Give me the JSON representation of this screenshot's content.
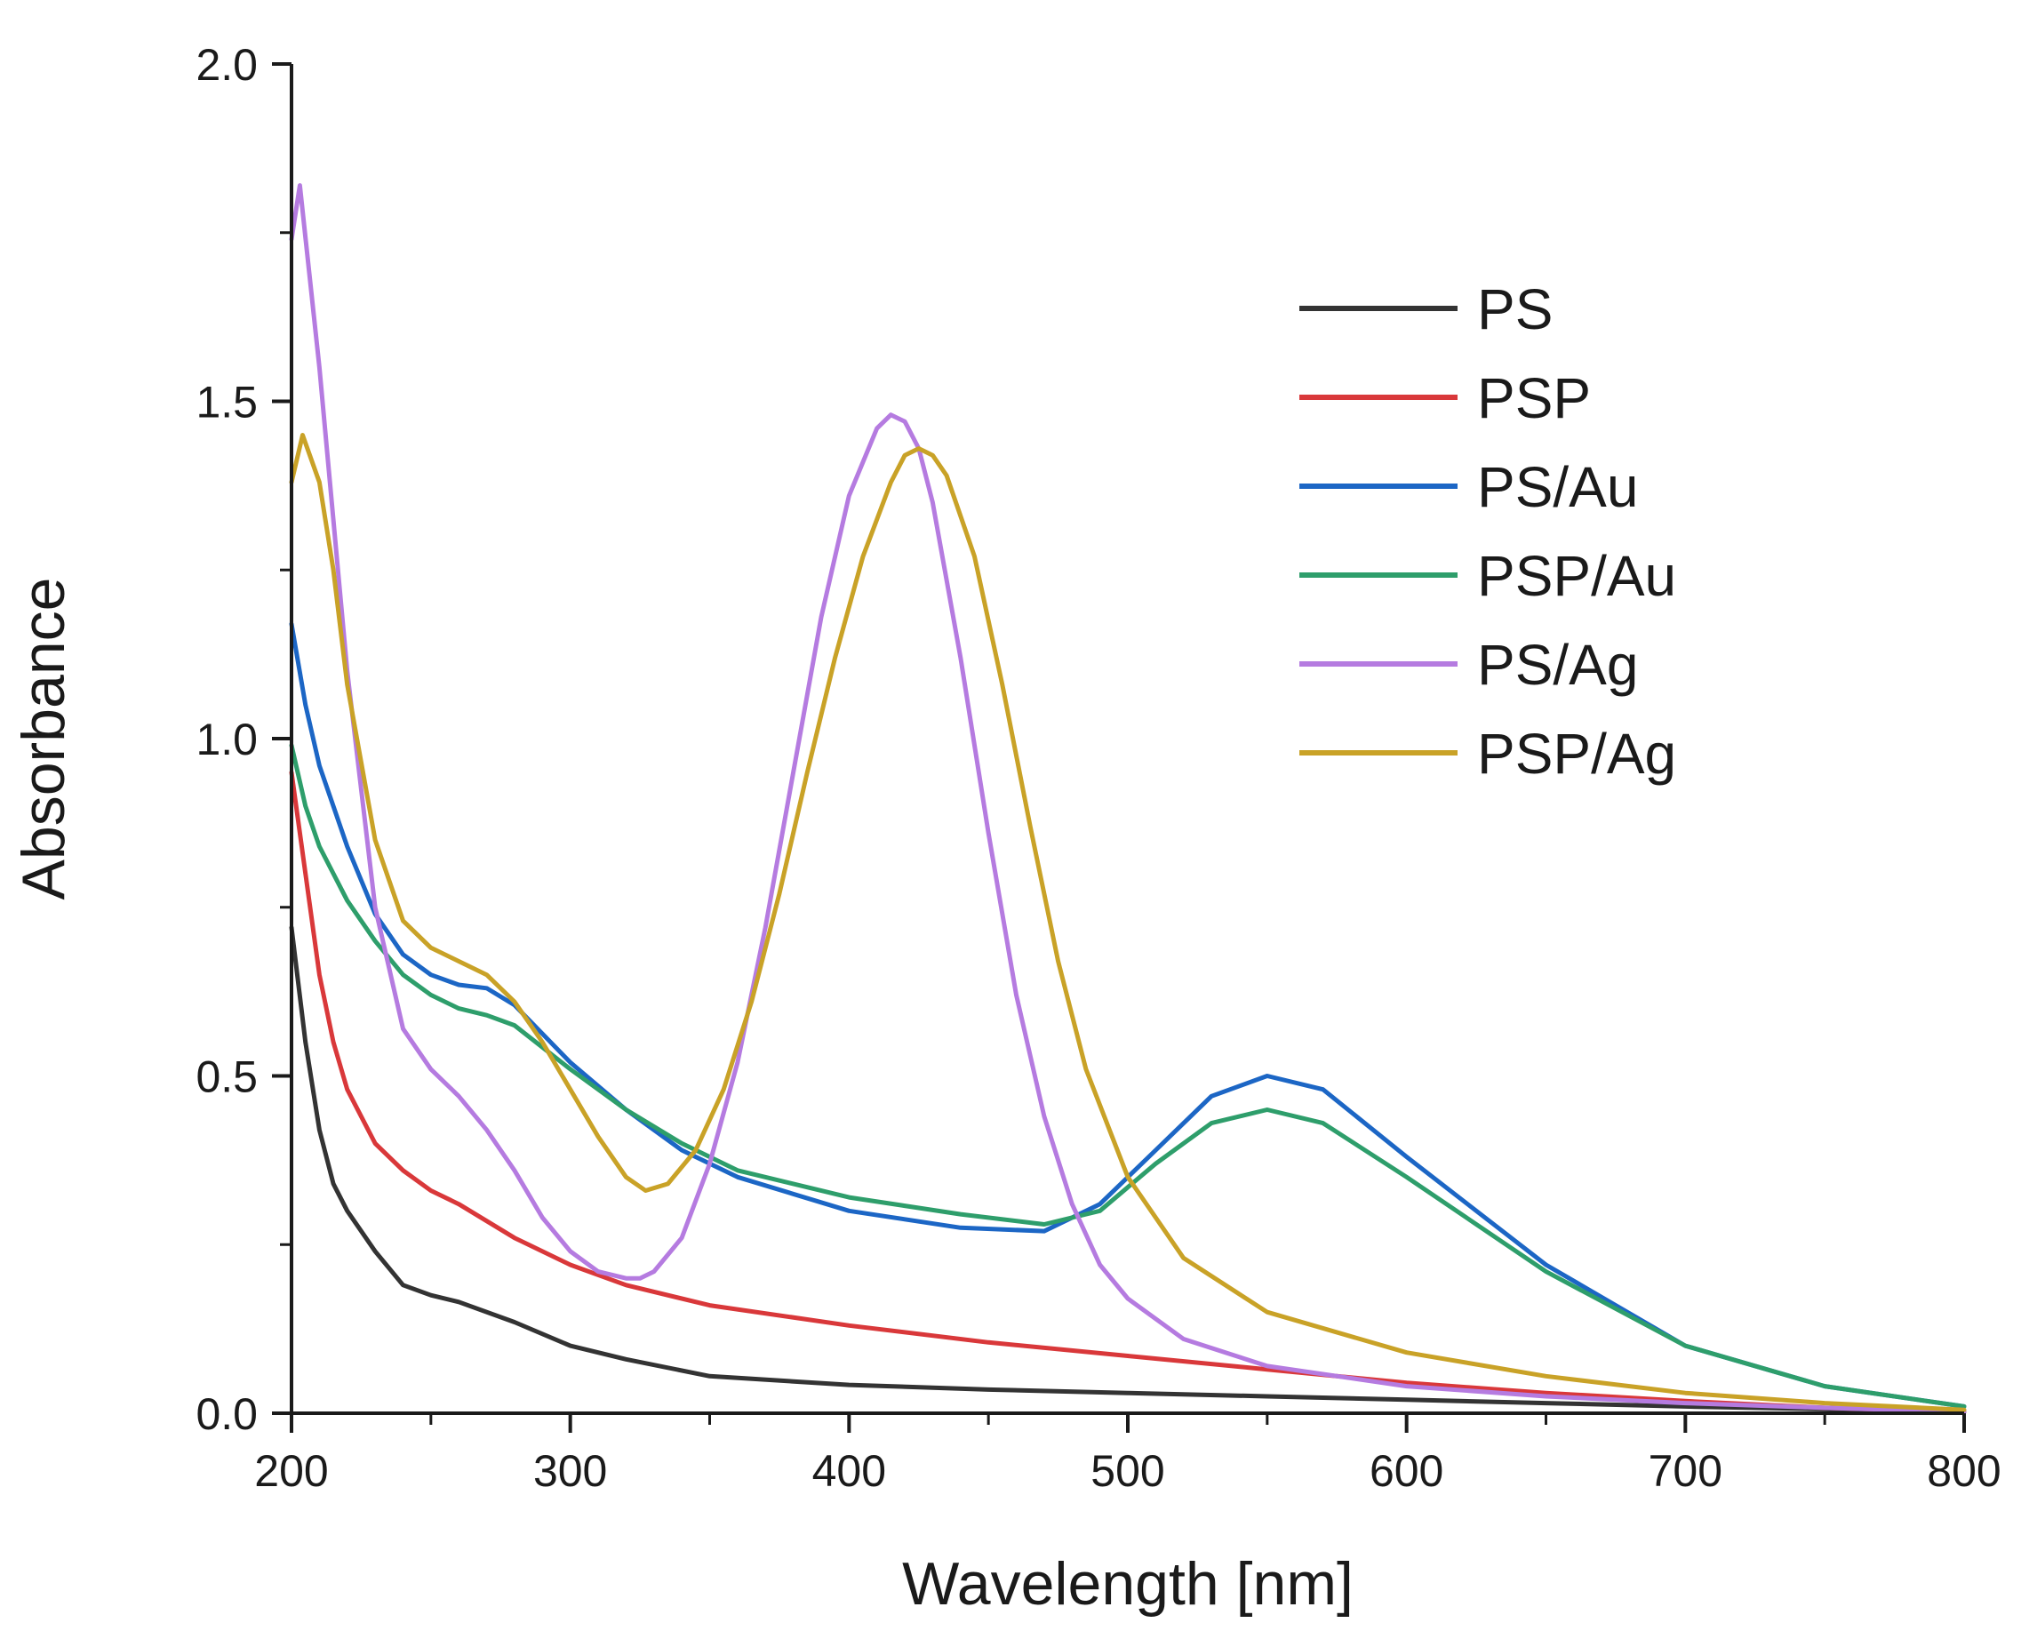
{
  "chart_data": {
    "type": "line",
    "title": "",
    "xlabel": "Wavelength [nm]",
    "ylabel": "Absorbance",
    "xlim": [
      200,
      800
    ],
    "ylim": [
      0.0,
      2.0
    ],
    "xticks": [
      200,
      300,
      400,
      500,
      600,
      700,
      800
    ],
    "xtick_labels": [
      "200",
      "300",
      "400",
      "500",
      "600",
      "700",
      "800"
    ],
    "yticks": [
      0.0,
      0.5,
      1.0,
      1.5,
      2.0
    ],
    "ytick_labels": [
      "0.0",
      "0.5",
      "1.0",
      "1.5",
      "2.0"
    ],
    "grid": false,
    "legend_position": "top-right",
    "series": [
      {
        "name": "PS",
        "color": "#333333",
        "x": [
          200,
          205,
          210,
          215,
          220,
          230,
          240,
          250,
          260,
          280,
          300,
          320,
          350,
          400,
          450,
          500,
          550,
          600,
          650,
          700,
          750,
          800
        ],
        "y": [
          0.72,
          0.55,
          0.42,
          0.34,
          0.3,
          0.24,
          0.19,
          0.175,
          0.165,
          0.135,
          0.1,
          0.08,
          0.055,
          0.042,
          0.035,
          0.03,
          0.025,
          0.02,
          0.015,
          0.01,
          0.006,
          0.002
        ]
      },
      {
        "name": "PSP",
        "color": "#d9383a",
        "x": [
          200,
          205,
          210,
          215,
          220,
          230,
          240,
          250,
          260,
          280,
          300,
          320,
          350,
          400,
          450,
          500,
          550,
          600,
          650,
          700,
          750,
          800
        ],
        "y": [
          0.95,
          0.8,
          0.65,
          0.55,
          0.48,
          0.4,
          0.36,
          0.33,
          0.31,
          0.26,
          0.22,
          0.19,
          0.16,
          0.13,
          0.105,
          0.085,
          0.065,
          0.045,
          0.03,
          0.018,
          0.008,
          0.002
        ]
      },
      {
        "name": "PS/Au",
        "color": "#1c66c5",
        "x": [
          200,
          205,
          210,
          220,
          230,
          240,
          250,
          260,
          270,
          280,
          300,
          320,
          340,
          360,
          400,
          440,
          470,
          490,
          510,
          530,
          550,
          570,
          600,
          650,
          700,
          750,
          800
        ],
        "y": [
          1.17,
          1.05,
          0.96,
          0.84,
          0.74,
          0.68,
          0.65,
          0.635,
          0.63,
          0.605,
          0.52,
          0.45,
          0.39,
          0.35,
          0.3,
          0.275,
          0.27,
          0.31,
          0.39,
          0.47,
          0.5,
          0.48,
          0.38,
          0.22,
          0.1,
          0.04,
          0.01
        ]
      },
      {
        "name": "PSP/Au",
        "color": "#2e9e6b",
        "x": [
          200,
          205,
          210,
          220,
          230,
          240,
          250,
          260,
          270,
          280,
          300,
          320,
          340,
          360,
          400,
          440,
          470,
          490,
          510,
          530,
          550,
          570,
          600,
          650,
          700,
          750,
          800
        ],
        "y": [
          0.99,
          0.9,
          0.84,
          0.76,
          0.7,
          0.65,
          0.62,
          0.6,
          0.59,
          0.575,
          0.51,
          0.45,
          0.4,
          0.36,
          0.32,
          0.295,
          0.28,
          0.3,
          0.37,
          0.43,
          0.45,
          0.43,
          0.35,
          0.21,
          0.1,
          0.04,
          0.01
        ]
      },
      {
        "name": "PS/Ag",
        "color": "#b57be0",
        "x": [
          200,
          203,
          210,
          220,
          230,
          240,
          250,
          260,
          270,
          280,
          290,
          300,
          310,
          320,
          325,
          330,
          340,
          350,
          360,
          370,
          380,
          390,
          400,
          410,
          415,
          420,
          425,
          430,
          440,
          450,
          460,
          470,
          480,
          490,
          500,
          520,
          550,
          600,
          650,
          700,
          750,
          800
        ],
        "y": [
          1.74,
          1.82,
          1.55,
          1.1,
          0.75,
          0.57,
          0.51,
          0.47,
          0.42,
          0.36,
          0.29,
          0.24,
          0.21,
          0.2,
          0.2,
          0.21,
          0.26,
          0.37,
          0.52,
          0.72,
          0.95,
          1.18,
          1.36,
          1.46,
          1.48,
          1.47,
          1.43,
          1.35,
          1.12,
          0.86,
          0.62,
          0.44,
          0.31,
          0.22,
          0.17,
          0.11,
          0.07,
          0.04,
          0.025,
          0.015,
          0.008,
          0.002
        ]
      },
      {
        "name": "PSP/Ag",
        "color": "#c9a227",
        "x": [
          200,
          204,
          210,
          215,
          220,
          230,
          240,
          250,
          260,
          270,
          280,
          290,
          300,
          310,
          320,
          327,
          335,
          345,
          355,
          365,
          375,
          385,
          395,
          405,
          415,
          420,
          425,
          430,
          435,
          445,
          455,
          465,
          475,
          485,
          500,
          520,
          550,
          600,
          650,
          700,
          750,
          800
        ],
        "y": [
          1.38,
          1.45,
          1.38,
          1.25,
          1.08,
          0.85,
          0.73,
          0.69,
          0.67,
          0.65,
          0.61,
          0.55,
          0.48,
          0.41,
          0.35,
          0.33,
          0.34,
          0.39,
          0.48,
          0.61,
          0.77,
          0.95,
          1.12,
          1.27,
          1.38,
          1.42,
          1.43,
          1.42,
          1.39,
          1.27,
          1.08,
          0.87,
          0.67,
          0.51,
          0.35,
          0.23,
          0.15,
          0.09,
          0.055,
          0.03,
          0.015,
          0.005
        ]
      }
    ]
  }
}
